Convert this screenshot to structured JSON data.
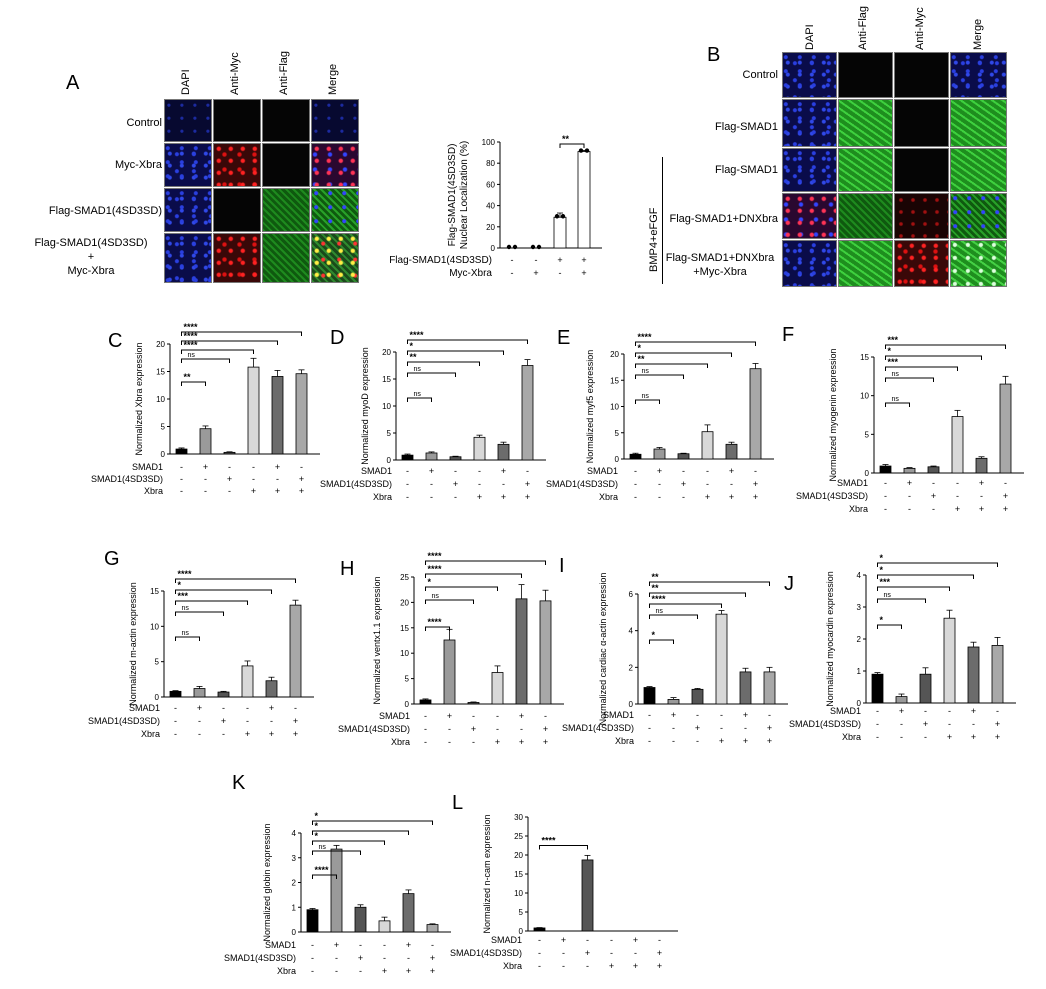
{
  "panelA": {
    "label": "A",
    "columns": [
      "DAPI",
      "Anti-Myc",
      "Anti-Flag",
      "Merge"
    ],
    "rows": [
      "Control",
      "Myc-Xbra",
      "Flag-SMAD1(4SD3SD)",
      "Flag-SMAD1(4SD3SD)\n+\nMyc-Xbra"
    ],
    "chart": {
      "ylabel": "Flag-SMAD1(4SD3SD)\nNuclear Localization (%)",
      "row1_label": "Flag-SMAD1(4SD3SD)",
      "row2_label": "Myc-Xbra",
      "sig": "**"
    }
  },
  "panelB": {
    "label": "B",
    "columns": [
      "DAPI",
      "Anti-Flag",
      "Anti-Myc",
      "Merge"
    ],
    "rows": [
      "Control",
      "Flag-SMAD1",
      "Flag-SMAD1",
      "Flag-SMAD1+DNXbra",
      "Flag-SMAD1+DNXbra\n+Myc-Xbra"
    ],
    "side_label": "BMP4+eFGF"
  },
  "chart_data": [
    {
      "id": "A",
      "type": "bar",
      "ylabel": "Flag-SMAD1(4SD3SD) Nuclear Localization (%)",
      "yticks": [
        0,
        20,
        40,
        60,
        80,
        100
      ],
      "ylim": [
        0,
        100
      ],
      "values": [
        0,
        0,
        29,
        91
      ],
      "errors": [
        0,
        0,
        4,
        1
      ],
      "colors": [
        "#fff",
        "#fff",
        "#fff",
        "#fff"
      ],
      "conds": [
        [
          "-",
          "-",
          "+",
          "+"
        ],
        [
          "-",
          "+",
          "-",
          "+"
        ]
      ],
      "rowlabels": [
        "Flag-SMAD1(4SD3SD)",
        "Myc-Xbra"
      ],
      "sig": [
        {
          "a": 2,
          "b": 3,
          "t": "**"
        }
      ]
    },
    {
      "id": "C",
      "type": "bar",
      "ylabel": "Normalized Xbra expression",
      "yticks": [
        0,
        5,
        10,
        15,
        20
      ],
      "ylim": [
        0,
        20
      ],
      "values": [
        0.9,
        4.6,
        0.3,
        15.8,
        14.1,
        14.6
      ],
      "errors": [
        0.2,
        0.5,
        0.1,
        1.6,
        1.1,
        0.7
      ],
      "conds": [
        [
          "-",
          "+",
          "-",
          "-",
          "+",
          "-"
        ],
        [
          "-",
          "-",
          "+",
          "-",
          "-",
          "+"
        ],
        [
          "-",
          "-",
          "-",
          "+",
          "+",
          "+"
        ]
      ],
      "rowlabels": [
        "SMAD1",
        "SMAD1(4SD3SD)",
        "Xbra"
      ],
      "sig": [
        {
          "a": 0,
          "b": 1,
          "t": "**"
        },
        {
          "a": 0,
          "b": 2,
          "t": "ns"
        },
        {
          "a": 0,
          "b": 3,
          "t": "****"
        },
        {
          "a": 0,
          "b": 4,
          "t": "****"
        },
        {
          "a": 0,
          "b": 5,
          "t": "****"
        }
      ]
    },
    {
      "id": "D",
      "type": "bar",
      "ylabel": "Normalized myoD expression",
      "yticks": [
        0,
        5,
        10,
        15,
        20
      ],
      "ylim": [
        0,
        20
      ],
      "values": [
        0.9,
        1.3,
        0.6,
        4.2,
        2.9,
        17.5
      ],
      "errors": [
        0.2,
        0.2,
        0.1,
        0.4,
        0.4,
        1.1
      ],
      "conds": [
        [
          "-",
          "+",
          "-",
          "-",
          "+",
          "-"
        ],
        [
          "-",
          "-",
          "+",
          "-",
          "-",
          "+"
        ],
        [
          "-",
          "-",
          "-",
          "+",
          "+",
          "+"
        ]
      ],
      "rowlabels": [
        "SMAD1",
        "SMAD1(4SD3SD)",
        "Xbra"
      ],
      "sig": [
        {
          "a": 0,
          "b": 1,
          "t": "ns"
        },
        {
          "a": 0,
          "b": 2,
          "t": "ns"
        },
        {
          "a": 0,
          "b": 3,
          "t": "**"
        },
        {
          "a": 0,
          "b": 4,
          "t": "*"
        },
        {
          "a": 0,
          "b": 5,
          "t": "****"
        }
      ]
    },
    {
      "id": "E",
      "type": "bar",
      "ylabel": "Normalized myf5 expression",
      "yticks": [
        0,
        5,
        10,
        15,
        20
      ],
      "ylim": [
        0,
        20
      ],
      "values": [
        0.9,
        1.9,
        1.0,
        5.2,
        2.8,
        17.2
      ],
      "errors": [
        0.2,
        0.3,
        0.1,
        1.3,
        0.4,
        1.0
      ],
      "conds": [
        [
          "-",
          "+",
          "-",
          "-",
          "+",
          "-"
        ],
        [
          "-",
          "-",
          "+",
          "-",
          "-",
          "+"
        ],
        [
          "-",
          "-",
          "-",
          "+",
          "+",
          "+"
        ]
      ],
      "rowlabels": [
        "SMAD1",
        "SMAD1(4SD3SD)",
        "Xbra"
      ],
      "sig": [
        {
          "a": 0,
          "b": 1,
          "t": "ns"
        },
        {
          "a": 0,
          "b": 2,
          "t": "ns"
        },
        {
          "a": 0,
          "b": 3,
          "t": "**"
        },
        {
          "a": 0,
          "b": 4,
          "t": "*"
        },
        {
          "a": 0,
          "b": 5,
          "t": "****"
        }
      ]
    },
    {
      "id": "F",
      "type": "bar",
      "ylabel": "Normalized myogenin expression",
      "yticks": [
        0,
        5,
        10,
        15
      ],
      "ylim": [
        0,
        15
      ],
      "values": [
        0.9,
        0.6,
        0.8,
        7.3,
        1.9,
        11.5
      ],
      "errors": [
        0.2,
        0.1,
        0.1,
        0.8,
        0.2,
        1.0
      ],
      "conds": [
        [
          "-",
          "+",
          "-",
          "-",
          "+",
          "-"
        ],
        [
          "-",
          "-",
          "+",
          "-",
          "-",
          "+"
        ],
        [
          "-",
          "-",
          "-",
          "+",
          "+",
          "+"
        ]
      ],
      "rowlabels": [
        "SMAD1",
        "SMAD1(4SD3SD)",
        "Xbra"
      ],
      "sig": [
        {
          "a": 0,
          "b": 1,
          "t": "ns"
        },
        {
          "a": 0,
          "b": 2,
          "t": "ns"
        },
        {
          "a": 0,
          "b": 3,
          "t": "***"
        },
        {
          "a": 0,
          "b": 4,
          "t": "*"
        },
        {
          "a": 0,
          "b": 5,
          "t": "***"
        }
      ]
    },
    {
      "id": "G",
      "type": "bar",
      "ylabel": "Normalized m-actin expression",
      "yticks": [
        0,
        5,
        10,
        15
      ],
      "ylim": [
        0,
        15
      ],
      "values": [
        0.8,
        1.2,
        0.7,
        4.4,
        2.3,
        13.0
      ],
      "errors": [
        0.1,
        0.3,
        0.1,
        0.7,
        0.5,
        0.7
      ],
      "conds": [
        [
          "-",
          "+",
          "-",
          "-",
          "+",
          "-"
        ],
        [
          "-",
          "-",
          "+",
          "-",
          "-",
          "+"
        ],
        [
          "-",
          "-",
          "-",
          "+",
          "+",
          "+"
        ]
      ],
      "rowlabels": [
        "SMAD1",
        "SMAD1(4SD3SD)",
        "Xbra"
      ],
      "sig": [
        {
          "a": 0,
          "b": 1,
          "t": "ns"
        },
        {
          "a": 0,
          "b": 2,
          "t": "ns"
        },
        {
          "a": 0,
          "b": 3,
          "t": "***"
        },
        {
          "a": 0,
          "b": 4,
          "t": "*"
        },
        {
          "a": 0,
          "b": 5,
          "t": "****"
        }
      ]
    },
    {
      "id": "H",
      "type": "bar",
      "ylabel": "Normalized ventx1.1 expression",
      "yticks": [
        0,
        5,
        10,
        15,
        20,
        25
      ],
      "ylim": [
        0,
        25
      ],
      "values": [
        0.8,
        12.6,
        0.3,
        6.2,
        20.7,
        20.3
      ],
      "errors": [
        0.2,
        2.1,
        0.1,
        1.3,
        2.8,
        2.1
      ],
      "conds": [
        [
          "-",
          "+",
          "-",
          "-",
          "+",
          "-"
        ],
        [
          "-",
          "-",
          "+",
          "-",
          "-",
          "+"
        ],
        [
          "-",
          "-",
          "-",
          "+",
          "+",
          "+"
        ]
      ],
      "rowlabels": [
        "SMAD1",
        "SMAD1(4SD3SD)",
        "Xbra"
      ],
      "sig": [
        {
          "a": 0,
          "b": 1,
          "t": "****"
        },
        {
          "a": 0,
          "b": 2,
          "t": "ns"
        },
        {
          "a": 0,
          "b": 3,
          "t": "*"
        },
        {
          "a": 0,
          "b": 4,
          "t": "****"
        },
        {
          "a": 0,
          "b": 5,
          "t": "****"
        }
      ]
    },
    {
      "id": "I",
      "type": "bar",
      "ylabel": "Normalized cardiac α-actin expression",
      "yticks": [
        0,
        2,
        4,
        6
      ],
      "ylim": [
        0,
        6
      ],
      "values": [
        0.9,
        0.25,
        0.8,
        4.9,
        1.75,
        1.75
      ],
      "errors": [
        0.05,
        0.1,
        0.05,
        0.2,
        0.2,
        0.25
      ],
      "conds": [
        [
          "-",
          "+",
          "-",
          "-",
          "+",
          "-"
        ],
        [
          "-",
          "-",
          "+",
          "-",
          "-",
          "+"
        ],
        [
          "-",
          "-",
          "-",
          "+",
          "+",
          "+"
        ]
      ],
      "rowlabels": [
        "SMAD1",
        "SMAD1(4SD3SD)",
        "Xbra"
      ],
      "sig": [
        {
          "a": 0,
          "b": 1,
          "t": "*"
        },
        {
          "a": 0,
          "b": 2,
          "t": "ns"
        },
        {
          "a": 0,
          "b": 3,
          "t": "****"
        },
        {
          "a": 0,
          "b": 4,
          "t": "**"
        },
        {
          "a": 0,
          "b": 5,
          "t": "**"
        }
      ]
    },
    {
      "id": "J",
      "type": "bar",
      "ylabel": "Normalized myocardin expression",
      "yticks": [
        0,
        1,
        2,
        3,
        4
      ],
      "ylim": [
        0,
        4
      ],
      "values": [
        0.9,
        0.2,
        0.9,
        2.65,
        1.75,
        1.8
      ],
      "errors": [
        0.05,
        0.08,
        0.2,
        0.25,
        0.15,
        0.25
      ],
      "conds": [
        [
          "-",
          "+",
          "-",
          "-",
          "+",
          "-"
        ],
        [
          "-",
          "-",
          "+",
          "-",
          "-",
          "+"
        ],
        [
          "-",
          "-",
          "-",
          "+",
          "+",
          "+"
        ]
      ],
      "rowlabels": [
        "SMAD1",
        "SMAD1(4SD3SD)",
        "Xbra"
      ],
      "sig": [
        {
          "a": 0,
          "b": 1,
          "t": "*"
        },
        {
          "a": 0,
          "b": 2,
          "t": "ns"
        },
        {
          "a": 0,
          "b": 3,
          "t": "***"
        },
        {
          "a": 0,
          "b": 4,
          "t": "*"
        },
        {
          "a": 0,
          "b": 5,
          "t": "*"
        }
      ]
    },
    {
      "id": "K",
      "type": "bar",
      "ylabel": "Normalized globin expression",
      "yticks": [
        0,
        1,
        2,
        3,
        4
      ],
      "ylim": [
        0,
        4
      ],
      "values": [
        0.9,
        3.35,
        1.0,
        0.45,
        1.55,
        0.3
      ],
      "errors": [
        0.05,
        0.15,
        0.1,
        0.15,
        0.15,
        0.03
      ],
      "conds": [
        [
          "-",
          "+",
          "-",
          "-",
          "+",
          "-"
        ],
        [
          "-",
          "-",
          "+",
          "-",
          "-",
          "+"
        ],
        [
          "-",
          "-",
          "-",
          "+",
          "+",
          "+"
        ]
      ],
      "rowlabels": [
        "SMAD1",
        "SMAD1(4SD3SD)",
        "Xbra"
      ],
      "sig": [
        {
          "a": 0,
          "b": 1,
          "t": "****"
        },
        {
          "a": 0,
          "b": 2,
          "t": "ns"
        },
        {
          "a": 0,
          "b": 3,
          "t": "*"
        },
        {
          "a": 0,
          "b": 4,
          "t": "*"
        },
        {
          "a": 0,
          "b": 5,
          "t": "*"
        }
      ]
    },
    {
      "id": "L",
      "type": "bar",
      "ylabel": "Normalized n-cam expression",
      "yticks": [
        0,
        5,
        10,
        15,
        20,
        25,
        30
      ],
      "ylim": [
        0,
        30
      ],
      "values": [
        0.8,
        0,
        18.7,
        0,
        0,
        0
      ],
      "errors": [
        0.1,
        0,
        1.2,
        0,
        0,
        0
      ],
      "conds": [
        [
          "-",
          "+",
          "-",
          "-",
          "+",
          "-"
        ],
        [
          "-",
          "-",
          "+",
          "-",
          "-",
          "+"
        ],
        [
          "-",
          "-",
          "-",
          "+",
          "+",
          "+"
        ]
      ],
      "rowlabels": [
        "SMAD1",
        "SMAD1(4SD3SD)",
        "Xbra"
      ],
      "sig": [
        {
          "a": 0,
          "b": 2,
          "t": "****"
        }
      ]
    }
  ]
}
